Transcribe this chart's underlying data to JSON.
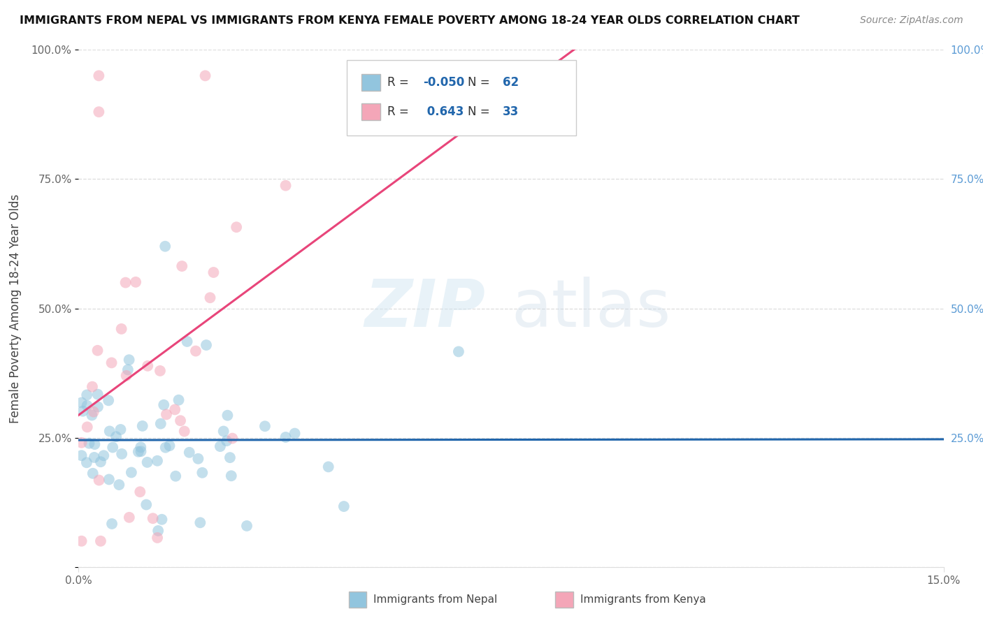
{
  "title": "IMMIGRANTS FROM NEPAL VS IMMIGRANTS FROM KENYA FEMALE POVERTY AMONG 18-24 YEAR OLDS CORRELATION CHART",
  "source": "Source: ZipAtlas.com",
  "ylabel": "Female Poverty Among 18-24 Year Olds",
  "xlim": [
    0.0,
    15.0
  ],
  "ylim": [
    0.0,
    100.0
  ],
  "watermark_zip": "ZIP",
  "watermark_atlas": "atlas",
  "nepal_R": -0.05,
  "nepal_N": 62,
  "kenya_R": 0.643,
  "kenya_N": 33,
  "nepal_color": "#92c5de",
  "kenya_color": "#f4a6b8",
  "nepal_line_color": "#2166ac",
  "kenya_line_color": "#e8457a",
  "legend_nepal": "Immigrants from Nepal",
  "legend_kenya": "Immigrants from Kenya",
  "right_tick_color": "#5b9bd5",
  "grid_color": "#dddddd",
  "nepal_seed": 10,
  "kenya_seed": 20
}
